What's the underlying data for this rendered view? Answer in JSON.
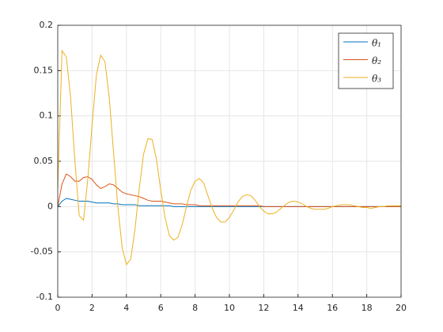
{
  "chart_data": {
    "type": "line",
    "x": [
      0,
      0.25,
      0.5,
      0.75,
      1,
      1.25,
      1.5,
      1.75,
      2,
      2.25,
      2.5,
      2.75,
      3,
      3.25,
      3.5,
      3.75,
      4,
      4.25,
      4.5,
      4.75,
      5,
      5.25,
      5.5,
      5.75,
      6,
      6.25,
      6.5,
      6.75,
      7,
      7.25,
      7.5,
      7.75,
      8,
      8.25,
      8.5,
      8.75,
      9,
      9.25,
      9.5,
      9.75,
      10,
      10.25,
      10.5,
      10.75,
      11,
      11.25,
      11.5,
      11.75,
      12,
      12.25,
      12.5,
      12.75,
      13,
      13.25,
      13.5,
      13.75,
      14,
      14.25,
      14.5,
      14.75,
      15,
      15.25,
      15.5,
      15.75,
      16,
      16.25,
      16.5,
      16.75,
      17,
      17.25,
      17.5,
      17.75,
      18,
      18.25,
      18.5,
      18.75,
      19,
      19.25,
      19.5,
      19.75,
      20
    ],
    "series": [
      {
        "name": "θ₁",
        "color": "#0072bd",
        "values": [
          0,
          0.006,
          0.009,
          0.008,
          0.007,
          0.006,
          0.006,
          0.006,
          0.005,
          0.004,
          0.004,
          0.004,
          0.004,
          0.003,
          0.003,
          0.002,
          0.002,
          0.002,
          0.002,
          0.001,
          0.001,
          0.001,
          0.001,
          0.001,
          0.001,
          0.001,
          0.001,
          0,
          0,
          0,
          0,
          0,
          0,
          0,
          0,
          0,
          0,
          0,
          0,
          0,
          0,
          0,
          0,
          0,
          0,
          0,
          0,
          0,
          0,
          0,
          0,
          0,
          0,
          0,
          0,
          0,
          0,
          0,
          0,
          0,
          0,
          0,
          0,
          0,
          0,
          0,
          0,
          0,
          0,
          0,
          0,
          0,
          0,
          0,
          0,
          0,
          0,
          0,
          0,
          0,
          0
        ]
      },
      {
        "name": "θ₂",
        "color": "#d95319",
        "values": [
          0,
          0.025,
          0.036,
          0.033,
          0.028,
          0.028,
          0.032,
          0.033,
          0.03,
          0.024,
          0.02,
          0.022,
          0.025,
          0.024,
          0.02,
          0.016,
          0.014,
          0.013,
          0.012,
          0.011,
          0.009,
          0.007,
          0.006,
          0.006,
          0.006,
          0.005,
          0.004,
          0.003,
          0.003,
          0.003,
          0.002,
          0.002,
          0.002,
          0.001,
          0.001,
          0.001,
          0.001,
          0.001,
          0.001,
          0.001,
          0.001,
          0.001,
          0.001,
          0.001,
          0.001,
          0.001,
          0.001,
          0.001,
          0,
          0,
          0,
          0,
          0,
          0,
          0,
          0,
          0,
          0,
          0,
          0,
          0,
          0,
          0,
          0,
          0,
          0,
          0,
          0,
          0,
          0,
          0,
          0,
          0,
          0,
          0,
          0,
          0,
          0,
          0,
          0,
          0
        ]
      },
      {
        "name": "θ₃",
        "color": "#edb120",
        "values": [
          0.02,
          0.172,
          0.165,
          0.12,
          0.05,
          -0.01,
          -0.015,
          0.03,
          0.09,
          0.145,
          0.167,
          0.16,
          0.12,
          0.06,
          0,
          -0.045,
          -0.064,
          -0.058,
          -0.025,
          0.02,
          0.058,
          0.075,
          0.074,
          0.052,
          0.018,
          -0.012,
          -0.032,
          -0.037,
          -0.034,
          -0.02,
          0,
          0.018,
          0.028,
          0.031,
          0.026,
          0.012,
          -0.002,
          -0.012,
          -0.017,
          -0.017,
          -0.012,
          -0.004,
          0.005,
          0.011,
          0.013,
          0.012,
          0.007,
          0,
          -0.005,
          -0.008,
          -0.008,
          -0.006,
          -0.002,
          0.002,
          0.005,
          0.006,
          0.005,
          0.003,
          0,
          -0.002,
          -0.003,
          -0.003,
          -0.003,
          -0.002,
          0,
          0.001,
          0.002,
          0.002,
          0.002,
          0.001,
          0,
          -0.001,
          -0.001,
          -0.002,
          -0.001,
          0,
          0,
          0.001,
          0.001,
          0.001,
          0.001
        ]
      }
    ],
    "xlim": [
      0,
      20
    ],
    "xticks": [
      0,
      2,
      4,
      6,
      8,
      10,
      12,
      14,
      16,
      18,
      20
    ],
    "ylim": [
      -0.1,
      0.2
    ],
    "yticks": [
      -0.1,
      -0.05,
      0,
      0.05,
      0.1,
      0.15,
      0.2
    ],
    "grid": true,
    "legend": "northeast"
  }
}
